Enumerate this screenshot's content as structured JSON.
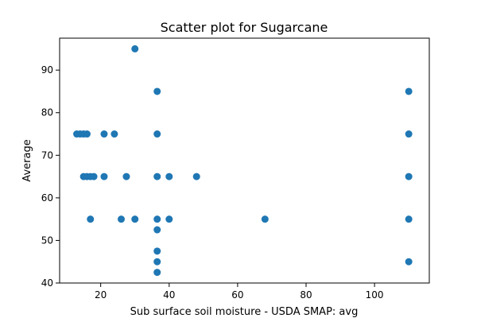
{
  "chart_data": {
    "type": "scatter",
    "title": "Scatter plot for Sugarcane",
    "xlabel": "Sub surface soil moisture - USDA SMAP: avg",
    "ylabel": "Average",
    "xlim": [
      8,
      116
    ],
    "ylim": [
      40,
      97.5
    ],
    "xticks": [
      20,
      40,
      60,
      80,
      100
    ],
    "yticks": [
      40,
      50,
      60,
      70,
      80,
      90
    ],
    "grid": false,
    "marker_color": "#1f77b4",
    "points": [
      {
        "x": 13,
        "y": 75
      },
      {
        "x": 14,
        "y": 75
      },
      {
        "x": 15,
        "y": 75
      },
      {
        "x": 16,
        "y": 75
      },
      {
        "x": 21,
        "y": 75
      },
      {
        "x": 24,
        "y": 75
      },
      {
        "x": 15,
        "y": 65
      },
      {
        "x": 16,
        "y": 65
      },
      {
        "x": 17,
        "y": 65
      },
      {
        "x": 18,
        "y": 65
      },
      {
        "x": 21,
        "y": 65
      },
      {
        "x": 27.5,
        "y": 65
      },
      {
        "x": 17,
        "y": 55
      },
      {
        "x": 26,
        "y": 55
      },
      {
        "x": 30,
        "y": 55
      },
      {
        "x": 30,
        "y": 95
      },
      {
        "x": 36.5,
        "y": 85
      },
      {
        "x": 36.5,
        "y": 75
      },
      {
        "x": 36.5,
        "y": 65
      },
      {
        "x": 36.5,
        "y": 55
      },
      {
        "x": 36.5,
        "y": 52.5
      },
      {
        "x": 36.5,
        "y": 47.5
      },
      {
        "x": 36.5,
        "y": 45
      },
      {
        "x": 36.5,
        "y": 42.5
      },
      {
        "x": 40,
        "y": 65
      },
      {
        "x": 40,
        "y": 55
      },
      {
        "x": 48,
        "y": 65
      },
      {
        "x": 68,
        "y": 55
      },
      {
        "x": 110,
        "y": 85
      },
      {
        "x": 110,
        "y": 75
      },
      {
        "x": 110,
        "y": 65
      },
      {
        "x": 110,
        "y": 55
      },
      {
        "x": 110,
        "y": 45
      }
    ]
  }
}
